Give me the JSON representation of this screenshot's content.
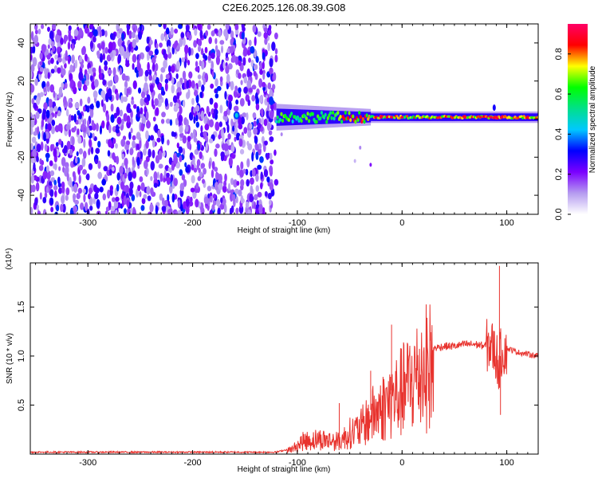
{
  "title": "C2E6.2025.126.08.39.G08",
  "chart_data": [
    {
      "type": "heatmap",
      "name": "spectrogram",
      "xlabel": "Height of straight line (km)",
      "ylabel": "Frequency (Hz)",
      "xlim": [
        -355,
        130
      ],
      "ylim": [
        -50,
        50
      ],
      "xticks": [
        -300,
        -200,
        -100,
        0,
        100
      ],
      "yticks": [
        -40,
        -20,
        0,
        20,
        40
      ],
      "noise_region_x": [
        -355,
        -120
      ],
      "signal_band_x": [
        -120,
        130
      ],
      "signal_band_center_hz": 1,
      "colorbar": {
        "label": "Normalized spectral amplitude",
        "ticks": [
          0.0,
          0.2,
          0.4,
          0.6,
          0.8
        ],
        "range": [
          0,
          0.95
        ],
        "colors": [
          "#ffffff",
          "#b59bf0",
          "#7b00ff",
          "#0000ff",
          "#00c8ff",
          "#00e08a",
          "#00ff00",
          "#ffff00",
          "#ff0000",
          "#ff0066"
        ]
      }
    },
    {
      "type": "line",
      "name": "snr",
      "xlabel": "Height of straight line (km)",
      "ylabel": "SNR (10 * v/v)",
      "y_scale_note": "(x10⁴)",
      "xlim": [
        -355,
        130
      ],
      "ylim": [
        0,
        1.95
      ],
      "xticks": [
        -300,
        -200,
        -100,
        0,
        100
      ],
      "yticks": [
        0.5,
        1.0,
        1.5
      ],
      "color": "#e8332e",
      "envelope": {
        "x": [
          -355,
          -300,
          -200,
          -120,
          -105,
          -95,
          -80,
          -60,
          -50,
          -40,
          -30,
          -20,
          -10,
          0,
          10,
          20,
          30,
          40,
          50,
          60,
          70,
          80,
          85,
          90,
          92,
          95,
          100,
          110,
          120,
          130
        ],
        "y": [
          0.02,
          0.02,
          0.02,
          0.02,
          0.06,
          0.15,
          0.18,
          0.15,
          0.25,
          0.3,
          0.45,
          0.55,
          0.65,
          0.75,
          0.88,
          1.02,
          1.08,
          1.1,
          1.1,
          1.12,
          1.12,
          1.1,
          1.12,
          1.0,
          0.9,
          1.05,
          1.08,
          1.04,
          1.02,
          1.0
        ]
      },
      "peaks": [
        {
          "x": 93,
          "y": 1.92
        },
        {
          "x": 94,
          "y": 0.4
        },
        {
          "x": -10,
          "y": 1.32
        },
        {
          "x": -30,
          "y": 0.85
        },
        {
          "x": -60,
          "y": 0.52
        }
      ]
    }
  ]
}
